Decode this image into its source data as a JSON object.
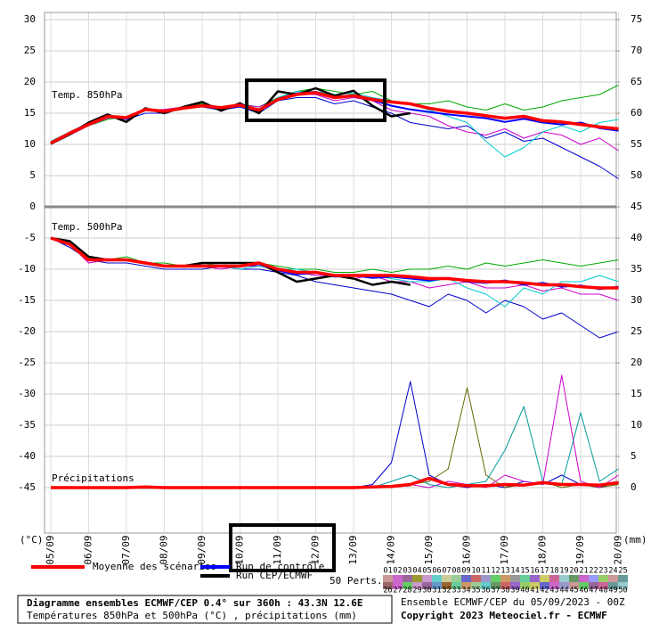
{
  "chart_data": {
    "type": "line",
    "categories": [
      "05/09",
      null,
      "06/09",
      null,
      "07/09",
      null,
      "08/09",
      null,
      "09/09",
      null,
      "10/09",
      null,
      "11/09",
      null,
      "12/09",
      null,
      "13/09",
      null,
      "14/09",
      null,
      "15/09",
      null,
      "16/09",
      null,
      "17/09",
      null,
      "18/09",
      null,
      "19/09",
      null,
      "20/09"
    ],
    "ylim": [
      -52,
      30
    ],
    "yticks": [
      30,
      25,
      20,
      15,
      10,
      5,
      0,
      -5,
      -10,
      -15,
      -20,
      -25,
      -30,
      -35,
      -40,
      -45
    ],
    "y2lim": [
      -7,
      75
    ],
    "y2ticks": [
      75,
      70,
      65,
      60,
      55,
      50,
      45,
      40,
      35,
      30,
      25,
      20,
      15,
      10,
      5,
      0
    ],
    "grid": true,
    "y_unit": "(°C)",
    "y2_unit": "(mm)",
    "legend": [
      {
        "name": "Moyenne des scénarios",
        "color": "#ff0000"
      },
      {
        "name": "Run de contrôle",
        "color": "#0000ff"
      },
      {
        "name": "Run CEP/ECMWF",
        "color": "#000000"
      }
    ],
    "perts_label": "50 Perts.",
    "pert_numbers": [
      "01",
      "02",
      "03",
      "04",
      "05",
      "06",
      "07",
      "08",
      "09",
      "10",
      "11",
      "12",
      "13",
      "14",
      "15",
      "16",
      "17",
      "18",
      "19",
      "20",
      "21",
      "22",
      "23",
      "24",
      "25",
      "26",
      "27",
      "28",
      "29",
      "30",
      "31",
      "32",
      "33",
      "34",
      "35",
      "36",
      "37",
      "38",
      "39",
      "40",
      "41",
      "42",
      "43",
      "44",
      "45",
      "46",
      "47",
      "48",
      "49",
      "50"
    ],
    "pert_colors": [
      "#cc9999",
      "#cc66cc",
      "#996699",
      "#999933",
      "#cc99cc",
      "#66cccc",
      "#cccc99",
      "#99cc99",
      "#6666cc",
      "#cc6666",
      "#9999cc",
      "#66cc66",
      "#cc9966",
      "#999999",
      "#66cc99",
      "#9966cc",
      "#cccc66",
      "#cc6699",
      "#99cccc",
      "#669966",
      "#cc66cc",
      "#9999ff",
      "#99cc66",
      "#cc9999",
      "#669999",
      "#996666",
      "#cc66cc",
      "#66cc66",
      "#cc99cc",
      "#996699",
      "#6699cc",
      "#996633",
      "#66cc99",
      "#cc9966",
      "#99cc99",
      "#66cccc",
      "#669966",
      "#cc6666",
      "#9966cc",
      "#99cc66",
      "#cccc66",
      "#6666cc",
      "#cc66cc",
      "#9999cc",
      "#cc9999",
      "#66cc66",
      "#996699",
      "#cc6699",
      "#669999",
      "#99cccc"
    ],
    "panels": [
      {
        "label": "Temp. 850hPa",
        "series": [
          {
            "color": "#00aa00",
            "values": [
              10,
              11.5,
              13,
              14,
              14.5,
              15.5,
              15.5,
              16,
              16.5,
              16,
              16.5,
              16,
              17.5,
              18.5,
              19,
              18.5,
              18,
              18.5,
              17,
              16.5,
              16.5,
              17,
              16,
              15.5,
              16.5,
              15.5,
              16,
              17,
              17.5,
              18,
              19.5
            ]
          },
          {
            "color": "#0000cc",
            "values": [
              10.3,
              12,
              13.3,
              14.5,
              14,
              15,
              15,
              16,
              16,
              15.5,
              16,
              15,
              17,
              17.5,
              17.5,
              16.5,
              17,
              16,
              15,
              13.5,
              13,
              12.5,
              13,
              11,
              12,
              10.5,
              11,
              9.5,
              8,
              6.5,
              4.5
            ]
          },
          {
            "color": "#cc00cc",
            "values": [
              10,
              11.5,
              13,
              14.2,
              14.5,
              15.5,
              15.6,
              16,
              16.3,
              16,
              16.4,
              16,
              17.2,
              18,
              18,
              17,
              17.5,
              17,
              15.5,
              15,
              14.5,
              13,
              12,
              11.5,
              12.5,
              11,
              12,
              11.5,
              10,
              11,
              9
            ]
          },
          {
            "color": "#00cccc",
            "values": [
              10.5,
              12,
              13.5,
              14.5,
              14.2,
              15.8,
              15.2,
              15.8,
              16,
              15.8,
              16.5,
              15.7,
              17.5,
              18.5,
              18.5,
              18,
              18.2,
              17.5,
              17,
              16.5,
              15.5,
              14.5,
              13.5,
              10.5,
              8,
              9.5,
              12,
              13,
              12,
              13.5,
              14
            ]
          },
          {
            "color": "#0000ff",
            "values": [
              10.2,
              11.7,
              13.2,
              14.4,
              14.1,
              15.5,
              15.2,
              15.9,
              16.1,
              15.7,
              16.2,
              15.4,
              17.3,
              18.2,
              18.4,
              17.6,
              17.9,
              17.1,
              16.2,
              15.6,
              15.2,
              14.8,
              14.5,
              14.2,
              13.6,
              14.1,
              13.5,
              13.2,
              13.5,
              12.6,
              12.2
            ]
          },
          {
            "color": "#000000",
            "values": [
              10.1,
              11.6,
              13.5,
              14.8,
              13.6,
              15.8,
              15,
              16,
              16.8,
              15.4,
              16.6,
              15,
              18.5,
              18,
              19,
              17.8,
              18.6,
              16.2,
              14.5,
              15,
              null,
              null,
              null,
              null,
              null,
              null,
              null,
              null,
              null,
              null,
              null
            ]
          },
          {
            "color": "#ff0000",
            "values": [
              10.2,
              11.8,
              13.2,
              14.5,
              14.3,
              15.6,
              15.3,
              15.8,
              16.2,
              15.9,
              16.3,
              15.5,
              17.2,
              18,
              18.3,
              17.5,
              17.8,
              17.2,
              16.8,
              16.5,
              15.8,
              15.3,
              15,
              14.6,
              14.2,
              14.5,
              13.8,
              13.6,
              13.2,
              12.8,
              12.5
            ]
          }
        ]
      },
      {
        "label": "Temp. 500hPa",
        "series": [
          {
            "color": "#00aa00",
            "values": [
              -5,
              -6,
              -8,
              -8.5,
              -8,
              -9,
              -9,
              -9.5,
              -9,
              -9.5,
              -9.5,
              -9,
              -9.5,
              -10,
              -10,
              -10.5,
              -10.5,
              -10,
              -10.5,
              -10,
              -10,
              -9.5,
              -10,
              -9,
              -9.5,
              -9,
              -8.5,
              -9,
              -9.5,
              -9,
              -8.5
            ]
          },
          {
            "color": "#0000cc",
            "values": [
              -5,
              -6.5,
              -8.5,
              -9,
              -9,
              -9.5,
              -10,
              -10,
              -10,
              -9.5,
              -10,
              -10,
              -10.5,
              -11,
              -12,
              -12.5,
              -13,
              -13.5,
              -14,
              -15,
              -16,
              -14,
              -15,
              -17,
              -15,
              -16,
              -18,
              -17,
              -19,
              -21,
              -20
            ]
          },
          {
            "color": "#cc00cc",
            "values": [
              -5,
              -6,
              -9,
              -8.5,
              -8.5,
              -9,
              -9.5,
              -9.5,
              -9.5,
              -10,
              -9.5,
              -9.5,
              -10,
              -10.5,
              -11,
              -11,
              -11.5,
              -11,
              -12,
              -12,
              -13,
              -12.5,
              -12,
              -13,
              -13,
              -12.5,
              -13.5,
              -13,
              -14,
              -14,
              -15
            ]
          },
          {
            "color": "#00cccc",
            "values": [
              -5,
              -6,
              -8,
              -8.5,
              -8.5,
              -9,
              -9.5,
              -9.5,
              -9.5,
              -9.5,
              -10,
              -9.5,
              -10,
              -10,
              -10.5,
              -11,
              -11,
              -11,
              -11.5,
              -12,
              -12,
              -11.5,
              -13,
              -14,
              -16,
              -13,
              -14,
              -12,
              -12,
              -11,
              -12
            ]
          },
          {
            "color": "#0000ff",
            "values": [
              -5,
              -6,
              -8.4,
              -8.6,
              -8.5,
              -9,
              -9.4,
              -9.6,
              -9.4,
              -9.6,
              -9.6,
              -9.2,
              -10.2,
              -10.8,
              -10.6,
              -11.2,
              -11,
              -11.4,
              -11.2,
              -11.5,
              -11.8,
              -11.4,
              -12,
              -12.2,
              -11.8,
              -12.5,
              -12.2,
              -12.8,
              -12.6,
              -13.2,
              -12.8
            ]
          },
          {
            "color": "#000000",
            "values": [
              -5,
              -5.5,
              -8,
              -8.5,
              -8.5,
              -9,
              -9.5,
              -9.5,
              -9,
              -9,
              -9,
              -9,
              -10.5,
              -12,
              -11.5,
              -11,
              -11.5,
              -12.5,
              -12,
              -12.5,
              null,
              null,
              null,
              null,
              null,
              null,
              null,
              null,
              null,
              null,
              null
            ]
          },
          {
            "color": "#ff0000",
            "values": [
              -5,
              -6,
              -8.5,
              -8.5,
              -8.5,
              -9,
              -9.5,
              -9.5,
              -9.5,
              -9.5,
              -9.5,
              -9,
              -10,
              -10.5,
              -10.5,
              -11,
              -11,
              -11,
              -11,
              -11.2,
              -11.5,
              -11.5,
              -11.8,
              -12,
              -12,
              -12.2,
              -12.5,
              -12.5,
              -12.8,
              -13,
              -13
            ]
          }
        ]
      },
      {
        "label": "Précipitations",
        "series": [
          {
            "axis": "y2",
            "color": "#0000cc",
            "values": [
              0,
              0,
              0,
              0,
              0,
              0,
              0,
              0,
              0,
              0,
              0,
              0,
              0,
              0,
              0,
              0,
              0,
              0.5,
              4,
              17,
              2,
              0.5,
              0,
              0.5,
              0,
              1,
              0.5,
              2,
              0.5,
              0,
              1
            ]
          },
          {
            "axis": "y2",
            "color": "#666600",
            "values": [
              0,
              0,
              0,
              0,
              0,
              0,
              0,
              0,
              0,
              0,
              0,
              0,
              0,
              0,
              0,
              0,
              0,
              0,
              0,
              0.5,
              1,
              3,
              16,
              2,
              0,
              0.5,
              1,
              0,
              0.5,
              0,
              0.5
            ]
          },
          {
            "axis": "y2",
            "color": "#cc00cc",
            "values": [
              0,
              0,
              0,
              0,
              0,
              0,
              0,
              0,
              0,
              0,
              0,
              0,
              0,
              0,
              0,
              0,
              0,
              0,
              0.2,
              0.5,
              0,
              1,
              0.5,
              0,
              2,
              1,
              0.5,
              18,
              1,
              0,
              2
            ]
          },
          {
            "axis": "y2",
            "color": "#009999",
            "values": [
              0,
              0,
              0,
              0,
              0,
              0,
              0,
              0,
              0,
              0,
              0,
              0,
              0,
              0,
              0,
              0,
              0,
              0,
              1,
              2,
              0.5,
              0,
              0.5,
              1,
              6,
              13,
              1,
              0.5,
              12,
              1,
              3
            ]
          },
          {
            "axis": "y2",
            "color": "#000000",
            "values": [
              0,
              0,
              0,
              0,
              0,
              0,
              0,
              0,
              0,
              0,
              0,
              0,
              0,
              0,
              0,
              0,
              0,
              0.1,
              0.2,
              0.4,
              null,
              null,
              null,
              null,
              null,
              null,
              null,
              null,
              null,
              null,
              null
            ]
          },
          {
            "axis": "y2",
            "color": "#ff0000",
            "values": [
              0,
              0,
              0,
              0,
              0,
              0.1,
              0,
              0,
              0,
              0,
              0,
              0,
              0,
              0,
              0,
              0,
              0,
              0.1,
              0.2,
              0.5,
              1.5,
              0.5,
              0.3,
              0.3,
              0.5,
              0.4,
              0.8,
              0.5,
              0.5,
              0.4,
              0.8
            ]
          }
        ]
      }
    ],
    "footer": {
      "title": "Diagramme ensembles ECMWF/CEP 0.4° sur 360h : 43.3N 12.6E",
      "subtitle": "Températures 850hPa et 500hPa (°C) , précipitations (mm)",
      "run": "Ensemble ECMWF/CEP du 05/09/2023 - 00Z",
      "copyright": "Copyright 2023 Meteociel.fr - ECMWF"
    }
  }
}
